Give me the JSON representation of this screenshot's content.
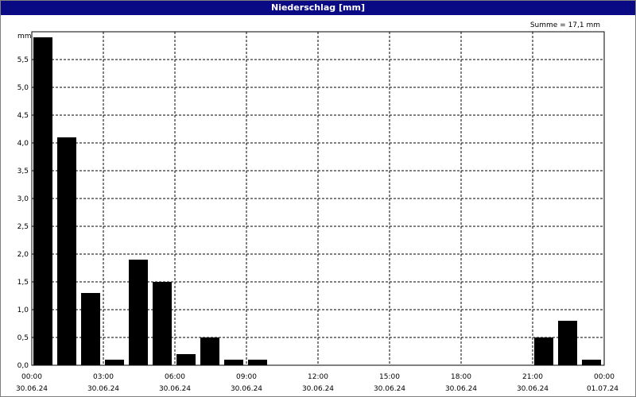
{
  "window": {
    "title": "Niederschlag [mm]"
  },
  "chart_data": {
    "type": "bar",
    "title": "Niederschlag [mm]",
    "ylabel": "mm",
    "annotation": "Summe = 17,1 mm",
    "ylim": [
      0,
      6.0
    ],
    "y_ticks": [
      "0,0",
      "0,5",
      "1,0",
      "1,5",
      "2,0",
      "2,5",
      "3,0",
      "3,5",
      "4,0",
      "4,5",
      "5,0",
      "5,5"
    ],
    "x_ticks": [
      {
        "time": "00:00",
        "date": "30.06.24"
      },
      {
        "time": "03:00",
        "date": "30.06.24"
      },
      {
        "time": "06:00",
        "date": "30.06.24"
      },
      {
        "time": "09:00",
        "date": "30.06.24"
      },
      {
        "time": "12:00",
        "date": "30.06.24"
      },
      {
        "time": "15:00",
        "date": "30.06.24"
      },
      {
        "time": "18:00",
        "date": "30.06.24"
      },
      {
        "time": "21:00",
        "date": "30.06.24"
      },
      {
        "time": "00:00",
        "date": "01.07.24"
      }
    ],
    "categories": [
      "00:00",
      "01:00",
      "02:00",
      "03:00",
      "04:00",
      "05:00",
      "06:00",
      "07:00",
      "08:00",
      "09:00",
      "10:00",
      "11:00",
      "12:00",
      "13:00",
      "14:00",
      "15:00",
      "16:00",
      "17:00",
      "18:00",
      "19:00",
      "20:00",
      "21:00",
      "22:00",
      "23:00"
    ],
    "values": [
      5.9,
      4.1,
      1.3,
      0.1,
      1.9,
      1.5,
      0.2,
      0.5,
      0.1,
      0.1,
      0,
      0,
      0,
      0,
      0,
      0,
      0,
      0,
      0,
      0,
      0,
      0.5,
      0.8,
      0.1
    ],
    "grid": true,
    "colors": {
      "bar": "#000000",
      "titlebar": "#0a0a84",
      "grid": "#000000"
    }
  }
}
